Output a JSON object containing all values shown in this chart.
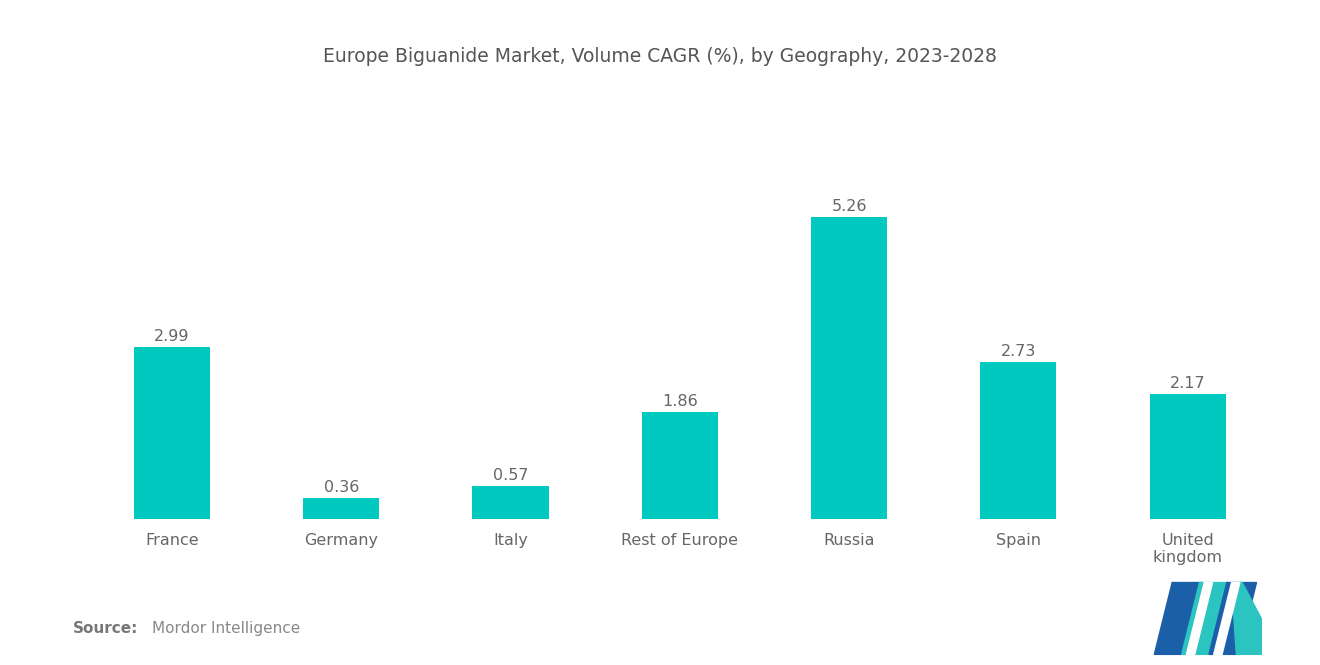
{
  "title": "Europe Biguanide Market, Volume CAGR (%), by Geography, 2023-2028",
  "categories": [
    "France",
    "Germany",
    "Italy",
    "Rest of Europe",
    "Russia",
    "Spain",
    "United\nkingdom"
  ],
  "values": [
    2.99,
    0.36,
    0.57,
    1.86,
    5.26,
    2.73,
    2.17
  ],
  "bar_color": "#00C9C0",
  "label_color": "#666666",
  "title_color": "#555555",
  "source_bold_color": "#777777",
  "source_normal_color": "#888888",
  "background_color": "#ffffff",
  "source_bold": "Source:",
  "source_normal": "  Mordor Intelligence",
  "title_fontsize": 13.5,
  "value_fontsize": 11.5,
  "tick_fontsize": 11.5,
  "source_fontsize": 11,
  "ylim": [
    0,
    6.5
  ],
  "bar_width": 0.45,
  "logo_dark_blue": "#1B5FA8",
  "logo_teal": "#2BC4C0"
}
